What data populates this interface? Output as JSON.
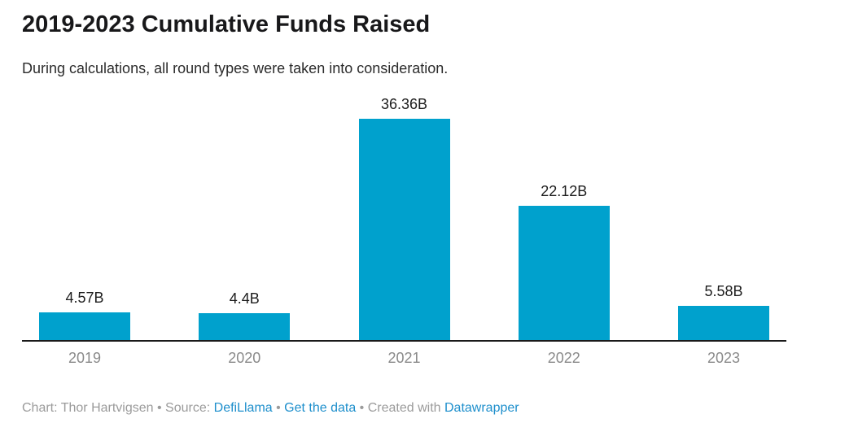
{
  "header": {
    "title": "2019-2023 Cumulative Funds Raised",
    "subtitle": "During calculations, all round types were taken into consideration."
  },
  "chart_data": {
    "type": "bar",
    "title": "2019-2023 Cumulative Funds Raised",
    "subtitle": "During calculations, all round types were taken into consideration.",
    "categories": [
      "2019",
      "2020",
      "2021",
      "2022",
      "2023"
    ],
    "values": [
      4.57,
      4.4,
      36.36,
      22.12,
      5.58
    ],
    "value_labels": [
      "4.57B",
      "4.4B",
      "36.36B",
      "22.12B",
      "5.58B"
    ],
    "unit": "B",
    "xlabel": "",
    "ylabel": "",
    "ylim": [
      0,
      36.36
    ],
    "grid": false,
    "legend": "none",
    "bar_color": "#00a1cd",
    "axis_line_color": "#1a1a1a",
    "tick_label_color": "#8a8a8a",
    "value_label_color": "#1d1d1d"
  },
  "footer": {
    "credit": "Chart: Thor Hartvigsen",
    "sep": " • ",
    "source_label": "Source: ",
    "source_link": "DefiLlama",
    "get_data_link": "Get the data",
    "created_with_label": "Created with ",
    "tool_link": "Datawrapper"
  },
  "colors": {
    "accent": "#00a1cd",
    "link": "#1e8fcc",
    "footer_text": "#9b9b9b"
  }
}
